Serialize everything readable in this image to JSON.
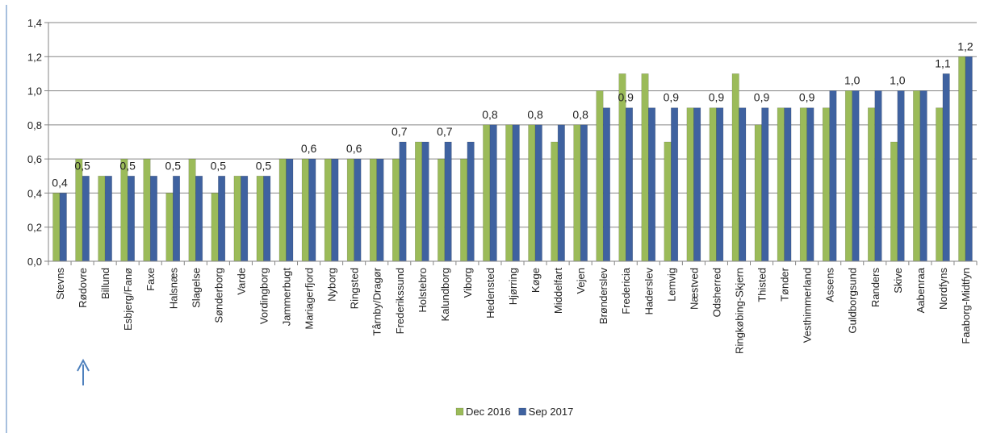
{
  "chart_data": {
    "type": "bar",
    "categories": [
      "Stevns",
      "Rødovre",
      "Billund",
      "Esbjerg/Fanø",
      "Faxe",
      "Halsnæs",
      "Slagelse",
      "Sønderborg",
      "Varde",
      "Vordingborg",
      "Jammerbugt",
      "Mariagerfjord",
      "Nyborg",
      "Ringsted",
      "Tårnby/Dragør",
      "Frederikssund",
      "Holstebro",
      "Kalundborg",
      "Viborg",
      "Hedensted",
      "Hjørring",
      "Køge",
      "Middelfart",
      "Vejen",
      "Brønderslev",
      "Fredericia",
      "Haderslev",
      "Lemvig",
      "Næstved",
      "Odsherred",
      "Ringkøbing-Skjern",
      "Thisted",
      "Tønder",
      "Vesthimmerland",
      "Assens",
      "Guldborgsund",
      "Randers",
      "Skive",
      "Aabenraa",
      "Nordfyns",
      "Faaborg-Midtfyn"
    ],
    "series": [
      {
        "name": "Dec 2016",
        "color": "#9bbb59",
        "values": [
          0.4,
          0.6,
          0.5,
          0.6,
          0.6,
          0.4,
          0.6,
          0.4,
          0.5,
          0.5,
          0.6,
          0.6,
          0.6,
          0.6,
          0.6,
          0.6,
          0.7,
          0.6,
          0.6,
          0.8,
          0.8,
          0.8,
          0.7,
          0.8,
          1.0,
          1.1,
          1.1,
          0.7,
          0.9,
          0.9,
          1.1,
          0.8,
          0.9,
          0.9,
          0.9,
          1.0,
          0.9,
          0.7,
          1.0,
          0.9,
          1.2
        ]
      },
      {
        "name": "Sep 2017",
        "color": "#3f62a0",
        "values": [
          0.4,
          0.5,
          0.5,
          0.5,
          0.5,
          0.5,
          0.5,
          0.5,
          0.5,
          0.5,
          0.6,
          0.6,
          0.6,
          0.6,
          0.6,
          0.7,
          0.7,
          0.7,
          0.7,
          0.8,
          0.8,
          0.8,
          0.8,
          0.8,
          0.9,
          0.9,
          0.9,
          0.9,
          0.9,
          0.9,
          0.9,
          0.9,
          0.9,
          0.9,
          1.0,
          1.0,
          1.0,
          1.0,
          1.0,
          1.1,
          1.2
        ],
        "value_labels": [
          "0,4",
          "0,5",
          null,
          "0,5",
          null,
          "0,5",
          null,
          "0,5",
          null,
          "0,5",
          null,
          "0,6",
          null,
          "0,6",
          null,
          "0,7",
          null,
          "0,7",
          null,
          "0,8",
          null,
          "0,8",
          null,
          "0,8",
          null,
          "0,9",
          null,
          "0,9",
          null,
          "0,9",
          null,
          "0,9",
          null,
          "0,9",
          null,
          "1,0",
          null,
          "1,0",
          null,
          "1,1",
          "1,2"
        ]
      }
    ],
    "ylim": [
      0,
      1.4
    ],
    "yticks": [
      {
        "value": 0,
        "label": "0,0"
      },
      {
        "value": 0.2,
        "label": "0,2"
      },
      {
        "value": 0.4,
        "label": "0,4"
      },
      {
        "value": 0.6,
        "label": "0,6"
      },
      {
        "value": 0.8,
        "label": "0,8"
      },
      {
        "value": 1.0,
        "label": "1,0"
      },
      {
        "value": 1.2,
        "label": "1,2"
      },
      {
        "value": 1.4,
        "label": "1,4"
      }
    ],
    "grid": true,
    "legend": "bottom"
  }
}
